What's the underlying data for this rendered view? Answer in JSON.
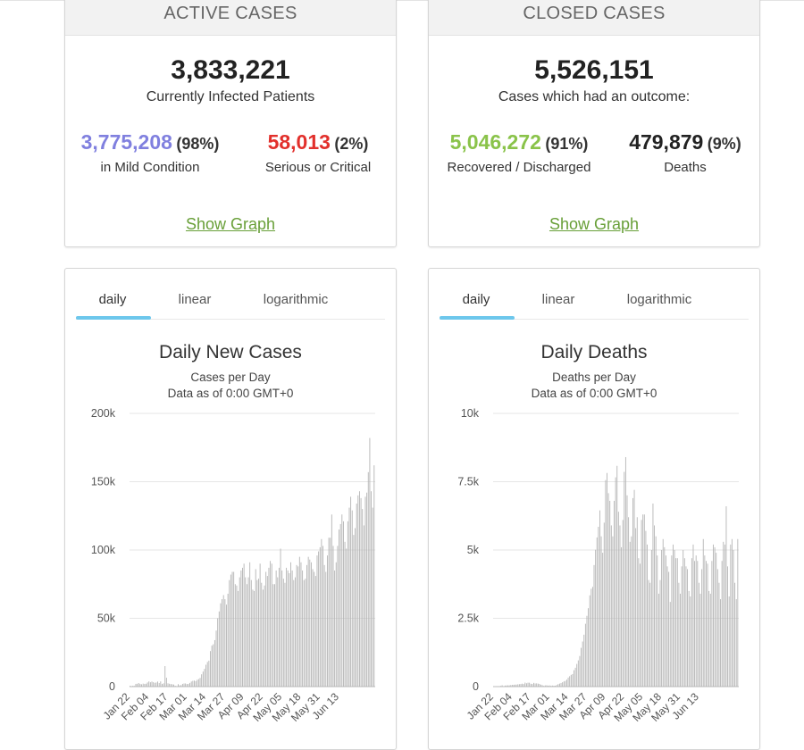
{
  "active": {
    "header": "ACTIVE CASES",
    "total": "3,833,221",
    "total_label": "Currently Infected Patients",
    "mild_value": "3,775,208",
    "mild_pct": "(98%)",
    "mild_label": "in Mild Condition",
    "serious_value": "58,013",
    "serious_pct": "(2%)",
    "serious_label": "Serious or Critical",
    "show_graph": "Show Graph"
  },
  "closed": {
    "header": "CLOSED CASES",
    "total": "5,526,151",
    "total_label": "Cases which had an outcome:",
    "recovered_value": "5,046,272",
    "recovered_pct": "(91%)",
    "recovered_label": "Recovered / Discharged",
    "deaths_value": "479,879",
    "deaths_pct": "(9%)",
    "deaths_label": "Deaths",
    "show_graph": "Show Graph"
  },
  "colors": {
    "mild": "#8080df",
    "serious": "#e2302c",
    "recovered": "#8ac34a",
    "link": "#689f38",
    "tab_underline": "#6dc7ec",
    "bar": "#b4b4b4"
  },
  "tabs": [
    "daily",
    "linear",
    "logarithmic"
  ],
  "chart_data": [
    {
      "type": "bar",
      "title": "Daily New Cases",
      "subtitle": "Cases per Day",
      "subtitle2": "Data as of 0:00 GMT+0",
      "ylim": [
        0,
        200000
      ],
      "y_ticks": [
        "0",
        "50k",
        "100k",
        "150k",
        "200k"
      ],
      "x_ticks": [
        "Jan 22",
        "Feb 04",
        "Feb 17",
        "Mar 01",
        "Mar 14",
        "Mar 27",
        "Apr 09",
        "Apr 22",
        "May 05",
        "May 18",
        "May 31",
        "Jun 13"
      ],
      "x_start": "Jan 22",
      "values": [
        580,
        100,
        600,
        500,
        2000,
        2100,
        2600,
        2000,
        1700,
        2200,
        2000,
        2100,
        3000,
        3800,
        3200,
        3700,
        3200,
        2800,
        3000,
        3700,
        2600,
        3800,
        2000,
        2400,
        15000,
        6500,
        2400,
        2100,
        1900,
        1700,
        1500,
        600,
        400,
        1800,
        900,
        1100,
        2000,
        2300,
        2300,
        1900,
        2000,
        2700,
        3700,
        4200,
        4400,
        4000,
        5000,
        5500,
        6400,
        9000,
        11000,
        13000,
        16000,
        18000,
        19000,
        26000,
        30000,
        31000,
        34000,
        41000,
        50000,
        55000,
        61000,
        64000,
        67000,
        64000,
        60000,
        68000,
        78000,
        82000,
        84000,
        84000,
        75000,
        74000,
        70000,
        80000,
        85000,
        87000,
        90000,
        80000,
        75000,
        80000,
        91000,
        78000,
        71000,
        70000,
        86000,
        78000,
        79000,
        90000,
        76000,
        71000,
        74000,
        84000,
        81000,
        87000,
        92000,
        90000,
        75000,
        75000,
        85000,
        80000,
        87000,
        101000,
        85000,
        79000,
        76000,
        87000,
        85000,
        83000,
        91000,
        85000,
        78000,
        80000,
        89000,
        88000,
        95000,
        91000,
        85000,
        78000,
        79000,
        89000,
        95000,
        93000,
        91000,
        86000,
        84000,
        81000,
        96000,
        99000,
        102000,
        108000,
        103000,
        89000,
        84000,
        96000,
        109000,
        109000,
        126000,
        103000,
        85000,
        91000,
        103000,
        115000,
        119000,
        126000,
        121000,
        106000,
        101000,
        121000,
        131000,
        139000,
        129000,
        111000,
        116000,
        134000,
        140000,
        143000,
        138000,
        130000,
        118000,
        139000,
        142000,
        157000,
        182000,
        143000,
        131000,
        162000
      ]
    },
    {
      "type": "bar",
      "title": "Daily Deaths",
      "subtitle": "Deaths per Day",
      "subtitle2": "Data as of 0:00 GMT+0",
      "ylim": [
        0,
        10000
      ],
      "y_ticks": [
        "0",
        "2.5k",
        "5k",
        "7.5k",
        "10k"
      ],
      "x_ticks": [
        "Jan 22",
        "Feb 04",
        "Feb 17",
        "Mar 01",
        "Mar 14",
        "Mar 27",
        "Apr 09",
        "Apr 22",
        "May 05",
        "May 18",
        "May 31",
        "Jun 13"
      ],
      "x_start": "Jan 22",
      "values": [
        17,
        1,
        8,
        16,
        14,
        26,
        49,
        2,
        38,
        42,
        46,
        45,
        57,
        64,
        66,
        73,
        73,
        86,
        89,
        97,
        108,
        97,
        146,
        121,
        143,
        142,
        105,
        98,
        136,
        114,
        118,
        109,
        98,
        71,
        52,
        29,
        44,
        47,
        35,
        42,
        31,
        38,
        31,
        33,
        58,
        90,
        110,
        130,
        160,
        190,
        210,
        255,
        330,
        380,
        430,
        460,
        600,
        690,
        830,
        960,
        1120,
        1420,
        1650,
        1900,
        2300,
        2590,
        2870,
        3340,
        3580,
        3650,
        4450,
        5010,
        5460,
        5850,
        6450,
        5500,
        4900,
        6000,
        7560,
        7820,
        7080,
        6800,
        5900,
        5500,
        6800,
        7660,
        8080,
        6400,
        5900,
        5100,
        6100,
        7860,
        8400,
        7000,
        6200,
        5300,
        5500,
        6900,
        7200,
        5800,
        6200,
        4700,
        4500,
        6100,
        6300,
        6300,
        5700,
        5200,
        3900,
        3800,
        5000,
        6700,
        5900,
        5500,
        4800,
        3400,
        3900,
        5000,
        5400,
        5100,
        4800,
        4400,
        4200,
        3100,
        4800,
        5200,
        5000,
        4700,
        4700,
        3800,
        3400,
        4400,
        5000,
        4700,
        4400,
        4300,
        3500,
        3300,
        4700,
        5200,
        4600,
        4800,
        4600,
        3800,
        3400,
        4300,
        5400,
        4800,
        4600,
        4500,
        3500,
        3400,
        4600,
        5200,
        5100,
        4900,
        4300,
        3800,
        3200,
        4600,
        5300,
        5200,
        6600,
        4400,
        3300,
        5200,
        5400,
        5000,
        3800,
        3200,
        5400
      ]
    }
  ]
}
